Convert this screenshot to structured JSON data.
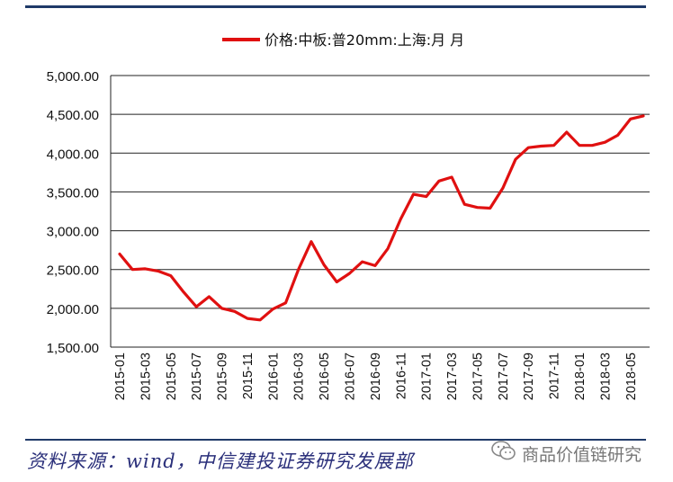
{
  "chart_data": {
    "type": "line",
    "title": "",
    "xlabel": "",
    "ylabel": "",
    "ylim": [
      1500,
      5000
    ],
    "yticks": [
      "1,500.00",
      "2,000.00",
      "2,500.00",
      "3,000.00",
      "3,500.00",
      "4,000.00",
      "4,500.00",
      "5,000.00"
    ],
    "xtick_labels": [
      "2015-01",
      "2015-03",
      "2015-05",
      "2015-07",
      "2015-09",
      "2015-11",
      "2016-01",
      "2016-03",
      "2016-05",
      "2016-07",
      "2016-09",
      "2016-11",
      "2017-01",
      "2017-03",
      "2017-05",
      "2017-07",
      "2017-09",
      "2017-11",
      "2018-01",
      "2018-03",
      "2018-05"
    ],
    "legend_position": "top-center",
    "grid": "horizontal",
    "series": [
      {
        "name": "价格:中板:普20mm:上海:月 月",
        "color": "#e01010",
        "x": [
          "2015-01",
          "2015-02",
          "2015-03",
          "2015-04",
          "2015-05",
          "2015-06",
          "2015-07",
          "2015-08",
          "2015-09",
          "2015-10",
          "2015-11",
          "2015-12",
          "2016-01",
          "2016-02",
          "2016-03",
          "2016-04",
          "2016-05",
          "2016-06",
          "2016-07",
          "2016-08",
          "2016-09",
          "2016-10",
          "2016-11",
          "2016-12",
          "2017-01",
          "2017-02",
          "2017-03",
          "2017-04",
          "2017-05",
          "2017-06",
          "2017-07",
          "2017-08",
          "2017-09",
          "2017-10",
          "2017-11",
          "2017-12",
          "2018-01",
          "2018-02",
          "2018-03",
          "2018-04",
          "2018-05",
          "2018-06"
        ],
        "values": [
          2700,
          2500,
          2510,
          2480,
          2420,
          2210,
          2020,
          2150,
          2000,
          1960,
          1870,
          1850,
          1990,
          2070,
          2500,
          2860,
          2560,
          2340,
          2450,
          2600,
          2550,
          2770,
          3150,
          3470,
          3440,
          3640,
          3690,
          3340,
          3300,
          3290,
          3550,
          3920,
          4070,
          4090,
          4100,
          4270,
          4100,
          4100,
          4140,
          4230,
          4440,
          4480
        ]
      }
    ]
  },
  "source": "资料来源：wind，中信建投证券研究发展部",
  "watermark": "商品价值链研究",
  "watermark_icon": "wechat-icon"
}
